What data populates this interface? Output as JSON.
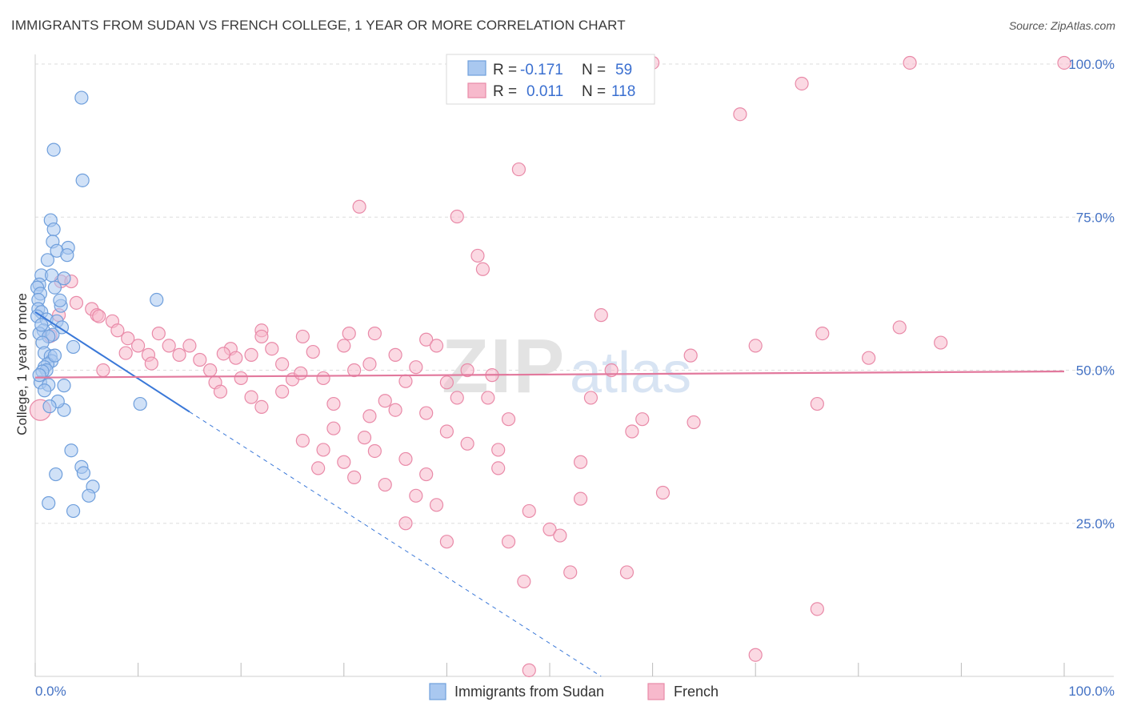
{
  "title": "IMMIGRANTS FROM SUDAN VS FRENCH COLLEGE, 1 YEAR OR MORE CORRELATION CHART",
  "source": "Source: ZipAtlas.com",
  "watermark": {
    "zip": "ZIP",
    "atlas": "atlas"
  },
  "colors": {
    "blue_fill": "#a9c8f0",
    "blue_stroke": "#6f9fdc",
    "blue_line": "#3a78d8",
    "pink_fill": "#f7b9cc",
    "pink_stroke": "#e98aa8",
    "pink_line": "#e2799d",
    "axis_text": "#4472c4",
    "grid": "#dddddd"
  },
  "legend": {
    "rows": [
      {
        "r_label": "R =",
        "r_value": "-0.171",
        "n_label": "N =",
        "n_value": "59",
        "color": "blue"
      },
      {
        "r_label": "R =",
        "r_value": "0.011",
        "n_label": "N =",
        "n_value": "118",
        "color": "pink"
      }
    ]
  },
  "chart_data": {
    "type": "scatter",
    "title": "IMMIGRANTS FROM SUDAN VS FRENCH COLLEGE, 1 YEAR OR MORE CORRELATION CHART",
    "xlabel": "",
    "ylabel": "College, 1 year or more",
    "xlim": [
      0,
      100
    ],
    "ylim": [
      0,
      100
    ],
    "x_tick_labels": [
      "0.0%",
      "100.0%"
    ],
    "y_tick_labels": [
      "25.0%",
      "50.0%",
      "75.0%",
      "100.0%"
    ],
    "y_ticks": [
      25,
      50,
      75,
      100
    ],
    "series": [
      {
        "name": "Immigrants from Sudan",
        "color": "blue",
        "r": -0.171,
        "n": 59,
        "trend": {
          "x0": 0,
          "y0": 59.5,
          "x1": 15,
          "y1": 43.2,
          "dash_to_x": 55,
          "dash_to_y": 0
        },
        "points": [
          [
            4.5,
            94.5
          ],
          [
            1.8,
            86
          ],
          [
            4.6,
            81
          ],
          [
            1.5,
            74.5
          ],
          [
            1.8,
            73
          ],
          [
            1.7,
            71
          ],
          [
            3.2,
            70
          ],
          [
            2.1,
            69.5
          ],
          [
            3.1,
            68.8
          ],
          [
            1.2,
            68
          ],
          [
            0.6,
            65.5
          ],
          [
            1.6,
            65.5
          ],
          [
            2.8,
            65
          ],
          [
            0.4,
            64
          ],
          [
            0.2,
            63.5
          ],
          [
            1.9,
            63.5
          ],
          [
            0.5,
            62.5
          ],
          [
            0.3,
            61.5
          ],
          [
            11.8,
            61.5
          ],
          [
            2.5,
            60.5
          ],
          [
            0.3,
            60
          ],
          [
            0.6,
            59.5
          ],
          [
            0.2,
            58.8
          ],
          [
            1.1,
            58.3
          ],
          [
            2.1,
            58
          ],
          [
            2.6,
            57
          ],
          [
            0.8,
            56.5
          ],
          [
            0.4,
            56
          ],
          [
            1.7,
            55.8
          ],
          [
            1.3,
            55.5
          ],
          [
            0.7,
            54.5
          ],
          [
            3.7,
            53.8
          ],
          [
            0.9,
            52.8
          ],
          [
            1.5,
            52.3
          ],
          [
            1.6,
            51.5
          ],
          [
            1.2,
            51
          ],
          [
            0.9,
            50.5
          ],
          [
            1.1,
            50
          ],
          [
            0.7,
            49.8
          ],
          [
            0.5,
            48
          ],
          [
            1.3,
            47.6
          ],
          [
            2.8,
            47.5
          ],
          [
            10.2,
            44.5
          ],
          [
            2.8,
            43.5
          ],
          [
            4.5,
            34.2
          ],
          [
            2.0,
            33
          ],
          [
            4.7,
            33.2
          ],
          [
            5.6,
            31
          ],
          [
            5.2,
            29.5
          ],
          [
            1.3,
            28.3
          ],
          [
            3.7,
            27
          ],
          [
            0.4,
            49.2
          ],
          [
            0.9,
            46.7
          ],
          [
            2.2,
            44.9
          ],
          [
            1.4,
            44.1
          ],
          [
            3.5,
            36.9
          ],
          [
            0.6,
            57.4
          ],
          [
            1.9,
            52.4
          ],
          [
            2.4,
            61.4
          ]
        ]
      },
      {
        "name": "French",
        "color": "pink",
        "r": 0.011,
        "n": 118,
        "trend": {
          "x0": 0,
          "y0": 48.8,
          "x1": 100,
          "y1": 49.8
        },
        "points": [
          [
            60,
            100.2
          ],
          [
            85,
            100.2
          ],
          [
            100,
            100.2
          ],
          [
            74.5,
            96.8
          ],
          [
            68.5,
            91.8
          ],
          [
            47,
            82.8
          ],
          [
            31.5,
            76.7
          ],
          [
            41,
            75.1
          ],
          [
            43,
            68.7
          ],
          [
            43.5,
            66.5
          ],
          [
            0.5,
            43.5
          ],
          [
            2.5,
            64.5
          ],
          [
            3.5,
            64.5
          ],
          [
            5.5,
            60
          ],
          [
            6,
            59
          ],
          [
            6.2,
            58.8
          ],
          [
            7.5,
            58
          ],
          [
            8,
            56.5
          ],
          [
            9,
            55.2
          ],
          [
            10,
            54
          ],
          [
            11,
            52.5
          ],
          [
            12,
            56
          ],
          [
            13,
            54
          ],
          [
            14,
            52.5
          ],
          [
            15,
            54
          ],
          [
            16,
            51.7
          ],
          [
            17,
            50
          ],
          [
            17.5,
            48
          ],
          [
            18,
            46.5
          ],
          [
            19,
            53.5
          ],
          [
            19.5,
            52
          ],
          [
            20,
            48.7
          ],
          [
            21,
            52.5
          ],
          [
            22,
            56.5
          ],
          [
            23,
            53.5
          ],
          [
            24,
            51
          ],
          [
            25,
            48.5
          ],
          [
            26,
            55.5
          ],
          [
            27,
            53
          ],
          [
            28,
            48.7
          ],
          [
            22,
            55.5
          ],
          [
            29,
            44.5
          ],
          [
            29,
            40.5
          ],
          [
            31,
            50
          ],
          [
            33,
            56
          ],
          [
            35,
            52.5
          ],
          [
            36,
            48.2
          ],
          [
            37,
            50.5
          ],
          [
            38,
            55
          ],
          [
            39,
            54
          ],
          [
            40,
            48
          ],
          [
            41,
            45.5
          ],
          [
            42,
            50
          ],
          [
            30,
            54
          ],
          [
            30.5,
            56
          ],
          [
            22,
            44
          ],
          [
            21,
            45.6
          ],
          [
            24,
            46.5
          ],
          [
            32.5,
            51
          ],
          [
            34,
            45
          ],
          [
            26,
            38.5
          ],
          [
            28,
            37
          ],
          [
            30,
            35
          ],
          [
            27.5,
            34
          ],
          [
            31,
            32.5
          ],
          [
            33,
            36.8
          ],
          [
            34,
            31.3
          ],
          [
            36,
            35.5
          ],
          [
            37,
            29.5
          ],
          [
            38,
            33
          ],
          [
            32.5,
            42.5
          ],
          [
            35,
            43.5
          ],
          [
            40,
            40
          ],
          [
            42,
            38
          ],
          [
            44,
            45.5
          ],
          [
            45,
            34
          ],
          [
            46,
            42
          ],
          [
            48,
            27
          ],
          [
            50,
            24
          ],
          [
            51,
            23
          ],
          [
            52,
            17
          ],
          [
            53,
            35
          ],
          [
            54,
            45.5
          ],
          [
            55,
            59
          ],
          [
            56,
            50
          ],
          [
            58,
            40
          ],
          [
            59,
            42
          ],
          [
            61,
            30
          ],
          [
            64,
            41.5
          ],
          [
            70,
            54
          ],
          [
            76,
            44.5
          ],
          [
            76.5,
            56
          ],
          [
            81,
            52
          ],
          [
            84,
            57
          ],
          [
            88,
            54.5
          ],
          [
            70,
            3.5
          ],
          [
            48,
            1
          ],
          [
            47.5,
            15.5
          ],
          [
            46,
            22
          ],
          [
            53,
            29
          ],
          [
            57.5,
            17
          ],
          [
            76,
            11
          ],
          [
            40,
            22
          ],
          [
            39,
            28
          ],
          [
            36,
            25
          ],
          [
            38,
            43
          ],
          [
            45,
            37
          ],
          [
            32,
            39
          ],
          [
            4,
            61
          ],
          [
            2.3,
            59
          ],
          [
            1.5,
            55.6
          ],
          [
            6.6,
            50
          ],
          [
            8.8,
            52.8
          ],
          [
            11.3,
            51.1
          ],
          [
            18.3,
            52.7
          ],
          [
            25.8,
            49.5
          ],
          [
            44.4,
            49.2
          ],
          [
            63.7,
            52.4
          ]
        ]
      }
    ]
  },
  "bottom_legend": [
    {
      "label": "Immigrants from Sudan",
      "color": "blue"
    },
    {
      "label": "French",
      "color": "pink"
    }
  ]
}
